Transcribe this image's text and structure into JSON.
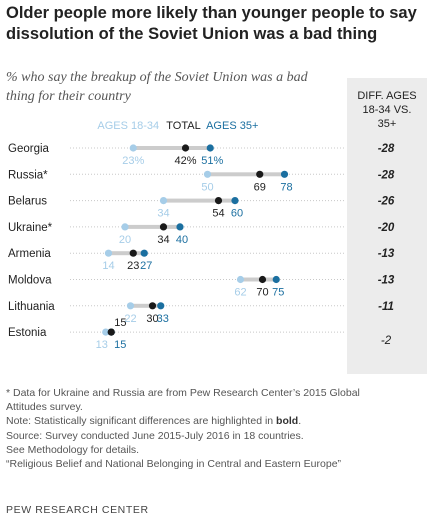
{
  "title": "Older people more likely than younger people to say dissolution of the Soviet Union was a bad thing",
  "subtitle": "% who say the breakup of the Soviet Union was a bad thing for their country",
  "diff_header": [
    "DIFF. AGES",
    "18-34 VS.",
    "35+"
  ],
  "colors": {
    "young": "#a6cde8",
    "total": "#1a1a1a",
    "old": "#1b6fa0",
    "bar": "#cccccc"
  },
  "chart_data": {
    "type": "dot",
    "categories": [
      "Georgia",
      "Russia*",
      "Belarus",
      "Ukraine*",
      "Armenia",
      "Moldova",
      "Lithuania",
      "Estonia"
    ],
    "series": [
      {
        "name": "AGES 18-34",
        "values": [
          23,
          50,
          34,
          20,
          14,
          62,
          22,
          13
        ]
      },
      {
        "name": "TOTAL",
        "values": [
          42,
          69,
          54,
          34,
          23,
          70,
          30,
          15
        ]
      },
      {
        "name": "AGES 35+",
        "values": [
          51,
          78,
          60,
          40,
          27,
          75,
          33,
          15
        ]
      }
    ],
    "differences": [
      "-28",
      "-28",
      "-26",
      "-20",
      "-13",
      "-13",
      "-11",
      "-2"
    ],
    "difference_bold": [
      true,
      true,
      true,
      true,
      true,
      true,
      true,
      false
    ],
    "xlim": [
      0,
      100
    ],
    "legend": "inline-top"
  },
  "notes": {
    "line1": "* Data for Ukraine and Russia are from Pew Research Center’s 2015 Global",
    "line2": "Attitudes survey.",
    "note_prefix": "Note: Statistically significant differences are highlighted in",
    "note_bold": "bold",
    "line4": "Source: Survey conducted June 2015-July 2016 in 18 countries.",
    "line5": "See Methodology for details.",
    "line6": "“Religious Belief and National Belonging in Central and Eastern Europe”"
  },
  "footer": "PEW RESEARCH CENTER"
}
